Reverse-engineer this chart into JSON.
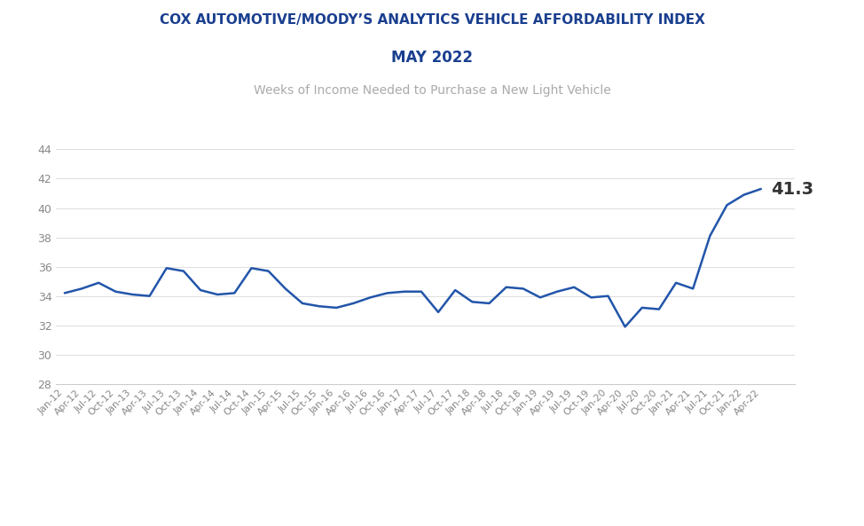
{
  "title1": "COX AUTOMOTIVE/MOODY’S ANALYTICS VEHICLE AFFORDABILITY INDEX",
  "title2": "MAY 2022",
  "subtitle": "Weeks of Income Needed to Purchase a New Light Vehicle",
  "line_color": "#2255AA",
  "title1_color": "#1A3F8F",
  "title2_color": "#1A3F8F",
  "subtitle_color": "#AAAAAA",
  "annotation_value": "41.3",
  "annotation_color": "#333333",
  "background_color": "#FFFFFF",
  "ylim": [
    28,
    44.5
  ],
  "yticks": [
    28,
    30,
    32,
    34,
    36,
    38,
    40,
    42,
    44
  ],
  "x_labels": [
    "Jan-12",
    "Apr-12",
    "Jul-12",
    "Oct-12",
    "Jan-13",
    "Apr-13",
    "Jul-13",
    "Oct-13",
    "Jan-14",
    "Apr-14",
    "Jul-14",
    "Oct-14",
    "Jan-15",
    "Apr-15",
    "Jul-15",
    "Oct-15",
    "Jan-16",
    "Apr-16",
    "Jul-16",
    "Oct-16",
    "Jan-17",
    "Apr-17",
    "Jul-17",
    "Oct-17",
    "Jan-18",
    "Apr-18",
    "Jul-18",
    "Oct-18",
    "Jan-19",
    "Apr-19",
    "Jul-19",
    "Oct-19",
    "Jan-20",
    "Apr-20",
    "Jul-20",
    "Oct-20",
    "Jan-21",
    "Apr-21",
    "Jul-21",
    "Oct-21",
    "Jan-22",
    "Apr-22"
  ],
  "values": [
    34.2,
    34.5,
    34.9,
    34.3,
    34.1,
    34.0,
    35.9,
    35.7,
    34.4,
    34.1,
    34.2,
    35.9,
    35.7,
    34.5,
    33.5,
    33.3,
    33.2,
    33.5,
    33.9,
    34.2,
    34.3,
    34.3,
    32.9,
    34.4,
    33.6,
    33.5,
    34.6,
    34.5,
    33.9,
    34.3,
    34.6,
    33.9,
    34.0,
    31.9,
    33.2,
    33.1,
    34.9,
    34.5,
    38.1,
    40.2,
    40.9,
    41.3
  ]
}
